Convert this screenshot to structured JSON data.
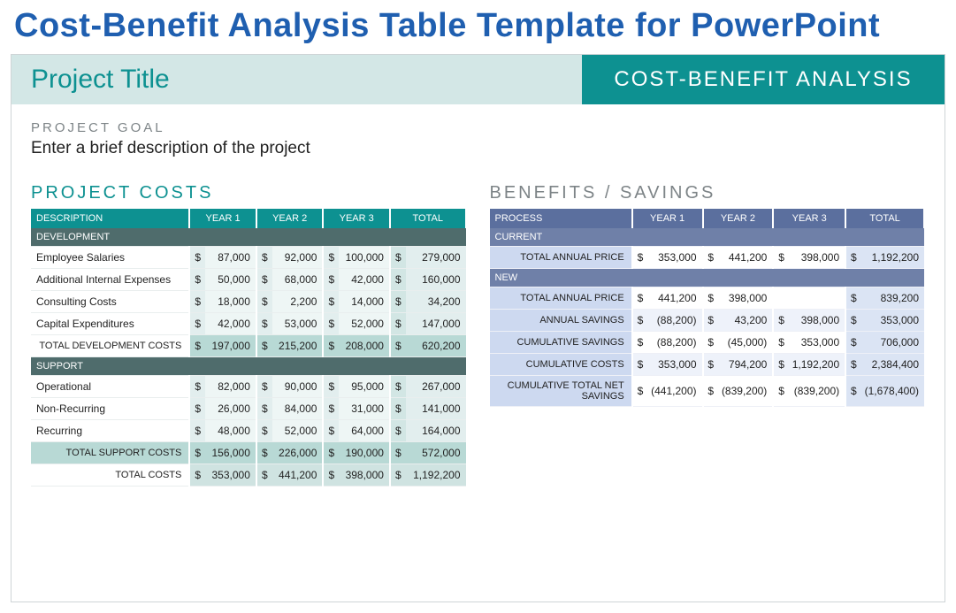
{
  "page_title": "Cost-Benefit Analysis Table Template for PowerPoint",
  "header": {
    "left": "Project Title",
    "right": "COST-BENEFIT ANALYSIS"
  },
  "goal": {
    "label": "PROJECT GOAL",
    "desc": "Enter a brief description of the project"
  },
  "costs": {
    "title": "PROJECT COSTS",
    "columns": [
      "DESCRIPTION",
      "YEAR 1",
      "YEAR 2",
      "YEAR 3",
      "TOTAL"
    ],
    "groups": [
      {
        "name": "DEVELOPMENT",
        "rows": [
          {
            "label": "Employee Salaries",
            "y1": "87,000",
            "y2": "92,000",
            "y3": "100,000",
            "tot": "279,000"
          },
          {
            "label": "Additional Internal Expenses",
            "y1": "50,000",
            "y2": "68,000",
            "y3": "42,000",
            "tot": "160,000"
          },
          {
            "label": "Consulting Costs",
            "y1": "18,000",
            "y2": "2,200",
            "y3": "14,000",
            "tot": "34,200"
          },
          {
            "label": "Capital Expenditures",
            "y1": "42,000",
            "y2": "53,000",
            "y3": "52,000",
            "tot": "147,000"
          }
        ],
        "subtotal": {
          "label": "TOTAL DEVELOPMENT COSTS",
          "y1": "197,000",
          "y2": "215,200",
          "y3": "208,000",
          "tot": "620,200"
        }
      },
      {
        "name": "SUPPORT",
        "rows": [
          {
            "label": "Operational",
            "y1": "82,000",
            "y2": "90,000",
            "y3": "95,000",
            "tot": "267,000"
          },
          {
            "label": "Non-Recurring",
            "y1": "26,000",
            "y2": "84,000",
            "y3": "31,000",
            "tot": "141,000"
          },
          {
            "label": "Recurring",
            "y1": "48,000",
            "y2": "52,000",
            "y3": "64,000",
            "tot": "164,000"
          }
        ],
        "subtotal": {
          "label": "TOTAL SUPPORT COSTS",
          "y1": "156,000",
          "y2": "226,000",
          "y3": "190,000",
          "tot": "572,000"
        }
      }
    ],
    "grand": {
      "label": "TOTAL COSTS",
      "y1": "353,000",
      "y2": "441,200",
      "y3": "398,000",
      "tot": "1,192,200"
    }
  },
  "benefits": {
    "title": "BENEFITS / SAVINGS",
    "columns": [
      "PROCESS",
      "YEAR 1",
      "YEAR 2",
      "YEAR 3",
      "TOTAL"
    ],
    "groups": [
      {
        "name": "CURRENT",
        "rows": [
          {
            "label": "TOTAL ANNUAL PRICE",
            "y1": "353,000",
            "y2": "441,200",
            "y3": "398,000",
            "tot": "1,192,200"
          }
        ]
      },
      {
        "name": "NEW",
        "rows": [
          {
            "label": "TOTAL ANNUAL PRICE",
            "y1": "441,200",
            "y2": "398,000",
            "y3": "",
            "tot": "839,200"
          },
          {
            "label": "ANNUAL SAVINGS",
            "y1": "(88,200)",
            "y2": "43,200",
            "y3": "398,000",
            "tot": "353,000"
          },
          {
            "label": "CUMULATIVE SAVINGS",
            "y1": "(88,200)",
            "y2": "(45,000)",
            "y3": "353,000",
            "tot": "706,000"
          },
          {
            "label": "CUMULATIVE COSTS",
            "y1": "353,000",
            "y2": "794,200",
            "y3": "1,192,200",
            "tot": "2,384,400",
            "nosym3": true
          },
          {
            "label": "CUMULATIVE TOTAL NET SAVINGS",
            "y1": "(441,200)",
            "y2": "(839,200)",
            "y3": "(839,200)",
            "tot": "(1,678,400)",
            "nosym": true
          }
        ]
      }
    ]
  },
  "sym": "$"
}
